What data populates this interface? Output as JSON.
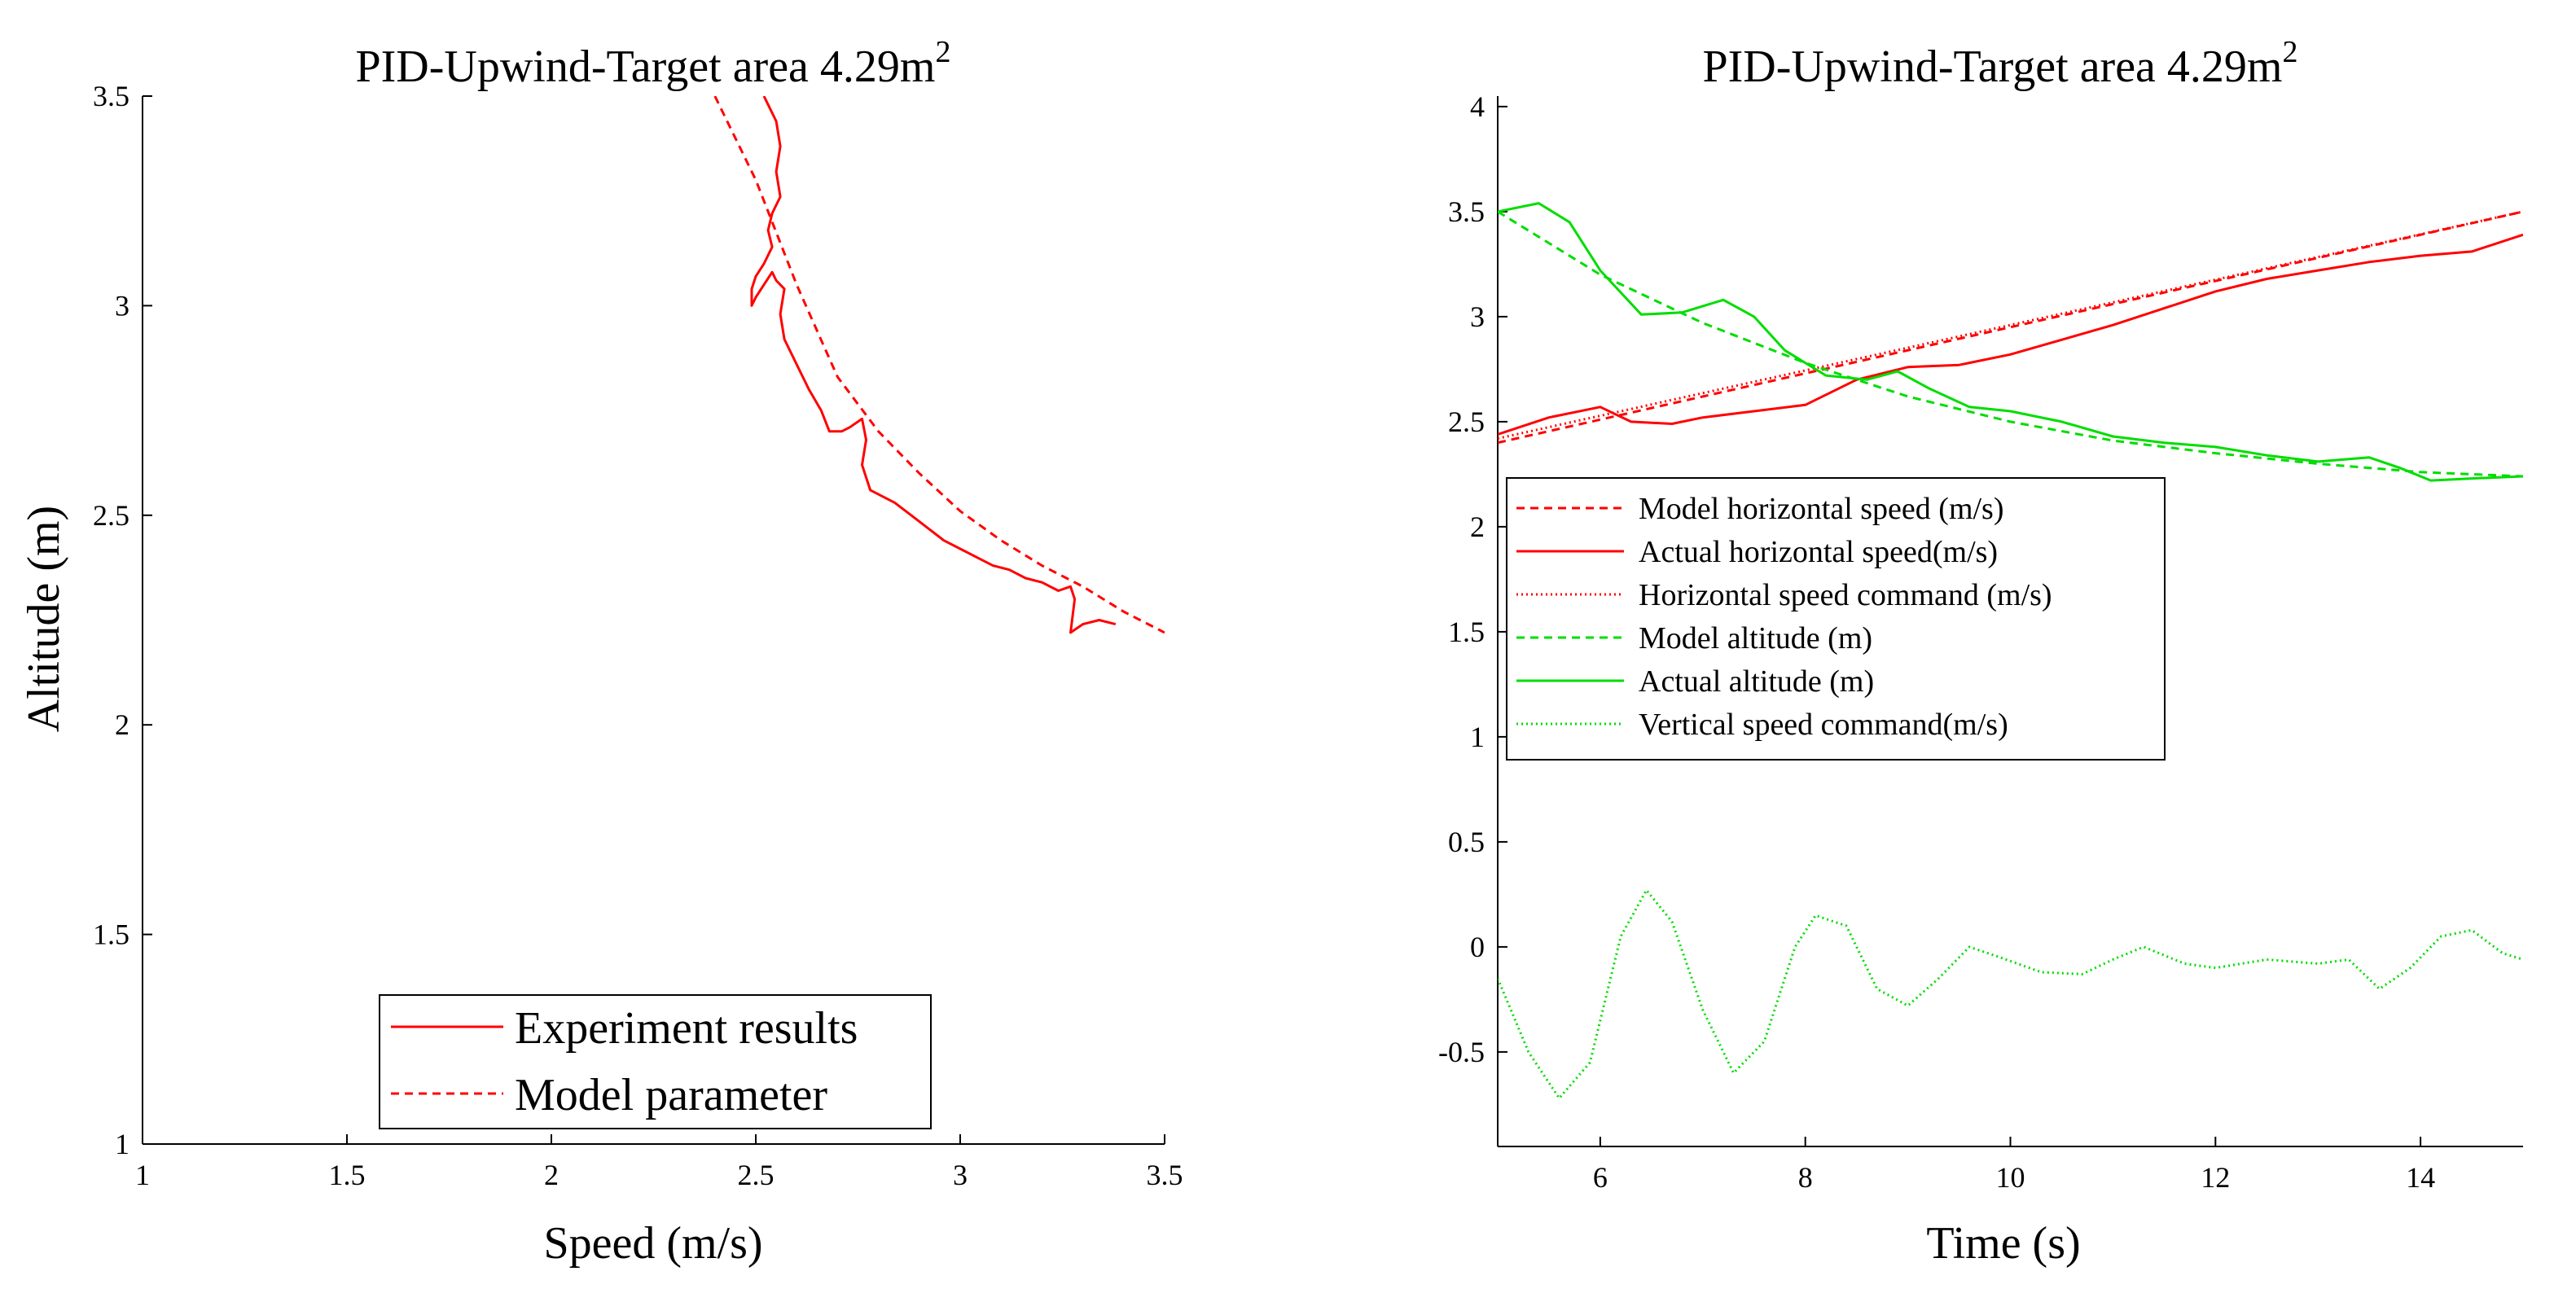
{
  "colors": {
    "red": "#ff0000",
    "green": "#00dd00",
    "axis": "#000000",
    "background": "#ffffff"
  },
  "chart_data": [
    {
      "type": "line",
      "title": "PID-Upwind-Target area 4.29m",
      "title_superscript": "2",
      "xlabel": "Speed (m/s)",
      "ylabel": "Altitude (m)",
      "xlim": [
        1,
        3.5
      ],
      "ylim": [
        1,
        3.5
      ],
      "xticks": [
        "1",
        "1.5",
        "2",
        "2.5",
        "3",
        "3.5"
      ],
      "yticks": [
        "1",
        "1.5",
        "2",
        "2.5",
        "3",
        "3.5"
      ],
      "legend_position": "bottom-center",
      "series": [
        {
          "name": "Experiment results",
          "style": "solid",
          "color": "#ff0000",
          "x": [
            2.52,
            2.55,
            2.56,
            2.55,
            2.56,
            2.54,
            2.53,
            2.54,
            2.52,
            2.5,
            2.49,
            2.49,
            2.5,
            2.52,
            2.54,
            2.55,
            2.57,
            2.56,
            2.57,
            2.6,
            2.63,
            2.66,
            2.68,
            2.71,
            2.73,
            2.76,
            2.77,
            2.76,
            2.78,
            2.8,
            2.84,
            2.88,
            2.92,
            2.96,
            3.0,
            3.04,
            3.08,
            3.12,
            3.16,
            3.2,
            3.24,
            3.27,
            3.28,
            3.27,
            3.3,
            3.34,
            3.38
          ],
          "y": [
            3.5,
            3.44,
            3.38,
            3.32,
            3.26,
            3.22,
            3.18,
            3.14,
            3.1,
            3.07,
            3.04,
            3.0,
            3.02,
            3.05,
            3.08,
            3.06,
            3.04,
            2.98,
            2.92,
            2.86,
            2.8,
            2.75,
            2.7,
            2.7,
            2.71,
            2.73,
            2.68,
            2.62,
            2.56,
            2.55,
            2.53,
            2.5,
            2.47,
            2.44,
            2.42,
            2.4,
            2.38,
            2.37,
            2.35,
            2.34,
            2.32,
            2.33,
            2.3,
            2.22,
            2.24,
            2.25,
            2.24
          ]
        },
        {
          "name": "Model parameter",
          "style": "dashed",
          "color": "#ff0000",
          "x": [
            2.4,
            2.5,
            2.6,
            2.7,
            2.8,
            2.9,
            3.0,
            3.1,
            3.2,
            3.3,
            3.4,
            3.5
          ],
          "y": [
            3.5,
            3.3,
            3.05,
            2.83,
            2.7,
            2.6,
            2.51,
            2.44,
            2.38,
            2.33,
            2.27,
            2.22
          ]
        }
      ]
    },
    {
      "type": "line",
      "title": "PID-Upwind-Target area 4.29m",
      "title_superscript": "2",
      "xlabel": "Time (s)",
      "ylabel": "",
      "xlim": [
        5,
        15
      ],
      "ylim": [
        -0.95,
        4.05
      ],
      "xticks": [
        "6",
        "8",
        "10",
        "12",
        "14"
      ],
      "yticks": [
        "-0.5",
        "0",
        "0.5",
        "1",
        "1.5",
        "2",
        "2.5",
        "3",
        "3.5",
        "4"
      ],
      "legend_position": "middle-left",
      "series": [
        {
          "name": "Model horizontal speed (m/s)",
          "style": "dashed",
          "color": "#ff0000",
          "x": [
            5,
            15
          ],
          "y": [
            2.4,
            3.5
          ]
        },
        {
          "name": "Actual horizontal speed(m/s)",
          "style": "solid",
          "color": "#ff0000",
          "x": [
            5.0,
            5.5,
            6.0,
            6.3,
            6.7,
            7.0,
            7.5,
            8.0,
            8.5,
            9.0,
            9.5,
            10.0,
            10.5,
            11.0,
            11.5,
            12.0,
            12.5,
            13.0,
            13.5,
            14.0,
            14.5,
            15.0
          ],
          "y": [
            2.44,
            2.52,
            2.57,
            2.5,
            2.49,
            2.52,
            2.55,
            2.58,
            2.7,
            2.76,
            2.77,
            2.82,
            2.89,
            2.96,
            3.04,
            3.12,
            3.18,
            3.22,
            3.26,
            3.29,
            3.31,
            3.39
          ]
        },
        {
          "name": "Horizontal speed command (m/s)",
          "style": "dotted",
          "color": "#ff0000",
          "x": [
            5,
            15
          ],
          "y": [
            2.42,
            3.5
          ]
        },
        {
          "name": "Model altitude (m)",
          "style": "dashed",
          "color": "#00dd00",
          "x": [
            5.0,
            6.0,
            7.0,
            8.0,
            9.0,
            10.0,
            11.0,
            12.0,
            13.0,
            14.0,
            15.0
          ],
          "y": [
            3.5,
            3.2,
            2.97,
            2.78,
            2.62,
            2.5,
            2.41,
            2.35,
            2.3,
            2.26,
            2.24
          ]
        },
        {
          "name": "Actual altitude (m)",
          "style": "solid",
          "color": "#00dd00",
          "x": [
            5.0,
            5.4,
            5.7,
            6.0,
            6.4,
            6.8,
            7.2,
            7.5,
            7.8,
            8.2,
            8.6,
            8.9,
            9.2,
            9.6,
            10.0,
            10.5,
            11.0,
            11.5,
            12.0,
            12.5,
            13.0,
            13.5,
            13.8,
            14.1,
            14.5,
            15.0
          ],
          "y": [
            3.5,
            3.54,
            3.45,
            3.22,
            3.01,
            3.02,
            3.08,
            3.0,
            2.84,
            2.72,
            2.7,
            2.74,
            2.66,
            2.57,
            2.55,
            2.5,
            2.43,
            2.4,
            2.38,
            2.34,
            2.31,
            2.33,
            2.28,
            2.22,
            2.23,
            2.24
          ]
        },
        {
          "name": "Vertical speed command(m/s)",
          "style": "dotted",
          "color": "#00dd00",
          "x": [
            5.0,
            5.3,
            5.6,
            5.9,
            6.2,
            6.45,
            6.7,
            7.0,
            7.3,
            7.6,
            7.9,
            8.1,
            8.4,
            8.7,
            9.0,
            9.3,
            9.6,
            9.9,
            10.3,
            10.7,
            11.0,
            11.3,
            11.7,
            12.0,
            12.5,
            13.0,
            13.3,
            13.6,
            13.9,
            14.2,
            14.5,
            14.8,
            15.0
          ],
          "y": [
            -0.15,
            -0.5,
            -0.72,
            -0.55,
            0.05,
            0.27,
            0.12,
            -0.3,
            -0.6,
            -0.45,
            0.0,
            0.15,
            0.1,
            -0.2,
            -0.28,
            -0.15,
            0.0,
            -0.05,
            -0.12,
            -0.13,
            -0.06,
            0.0,
            -0.08,
            -0.1,
            -0.06,
            -0.08,
            -0.06,
            -0.2,
            -0.1,
            0.05,
            0.08,
            -0.03,
            -0.06
          ]
        }
      ]
    }
  ]
}
